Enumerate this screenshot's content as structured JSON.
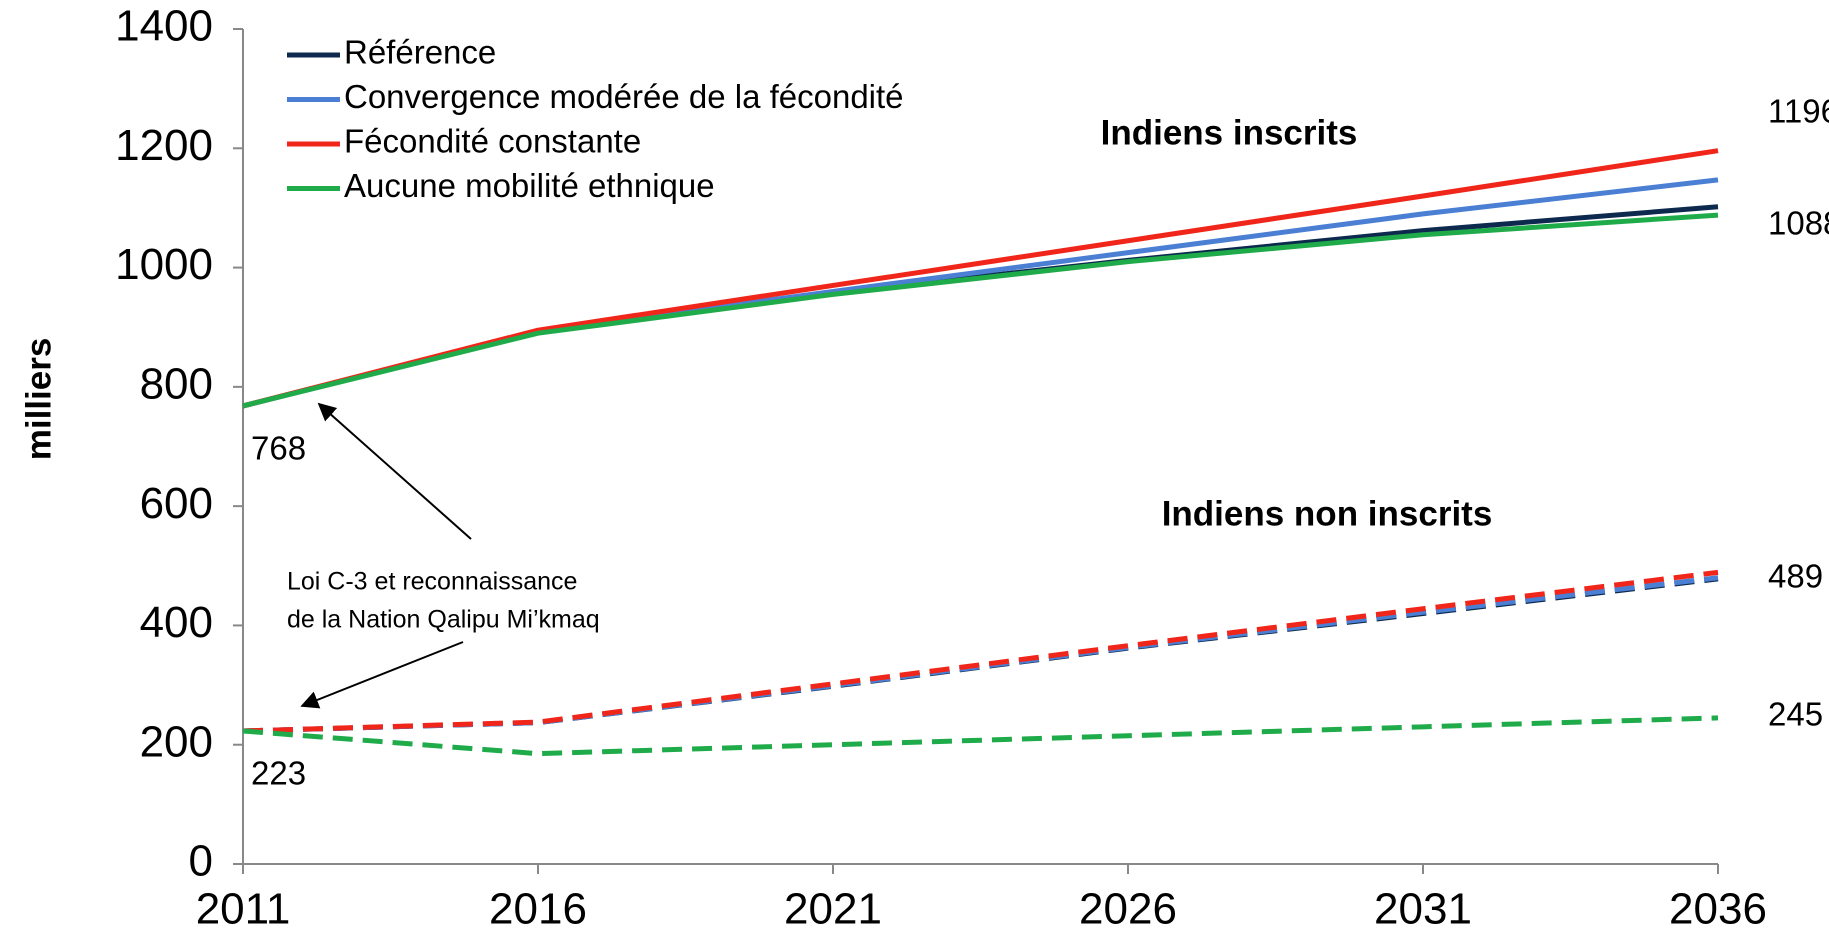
{
  "chart_data": {
    "type": "line",
    "y_label": "milliers",
    "x": [
      2011,
      2016,
      2021,
      2026,
      2031,
      2036
    ],
    "xlim": [
      2011,
      2036
    ],
    "xticks": [
      2011,
      2016,
      2021,
      2026,
      2031,
      2036
    ],
    "ylim": [
      0,
      1400
    ],
    "yticks": [
      0,
      200,
      400,
      600,
      800,
      1000,
      1200,
      1400
    ],
    "legend": "upper left",
    "groups": [
      {
        "label": "Indiens inscrits",
        "dashed": false,
        "series": [
          {
            "name": "Référence",
            "color": "#0d2a4e",
            "values": [
              768,
              893,
              958,
              1012,
              1062,
              1102
            ]
          },
          {
            "name": "Convergence modérée de la fécondité",
            "color": "#4a7fd4",
            "values": [
              768,
              893,
              960,
              1025,
              1090,
              1147
            ]
          },
          {
            "name": "Fécondité constante",
            "color": "#f0261b",
            "values": [
              768,
              895,
              970,
              1045,
              1120,
              1196
            ]
          },
          {
            "name": "Aucune mobilité ethnique",
            "color": "#1fab4a",
            "values": [
              768,
              890,
              955,
              1010,
              1055,
              1088
            ]
          }
        ]
      },
      {
        "label": "Indiens non inscrits",
        "dashed": true,
        "series": [
          {
            "color": "#0d2a4e",
            "values": [
              223,
              237,
              298,
              362,
              420,
              478
            ]
          },
          {
            "color": "#4a7fd4",
            "values": [
              223,
              237,
              299,
              363,
              422,
              480
            ]
          },
          {
            "color": "#f0261b",
            "values": [
              223,
              238,
              302,
              366,
              428,
              489
            ]
          },
          {
            "color": "#1fab4a",
            "values": [
              223,
              185,
              200,
              215,
              230,
              245
            ]
          }
        ]
      }
    ],
    "annotation": [
      "Loi C-3 et reconnaissance",
      "de la Nation Qalipu Mi’kmaq"
    ]
  }
}
